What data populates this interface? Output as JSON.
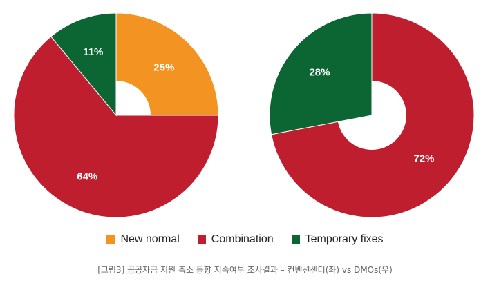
{
  "caption": "[그림3] 공공자금 지원 축소 동향 지속여부 조사결과 – 컨벤션센터(좌) vs DMOs(우)",
  "legend": [
    {
      "label": "New normal",
      "color": "#F39322"
    },
    {
      "label": "Combination",
      "color": "#BE1E2D"
    },
    {
      "label": "Temporary fixes",
      "color": "#0B6634"
    }
  ],
  "chart_data": [
    {
      "type": "pie",
      "donut": true,
      "title": "",
      "categories": [
        "New normal",
        "Combination",
        "Temporary fixes"
      ],
      "values": [
        25,
        64,
        11
      ],
      "labels": [
        "25%",
        "64%",
        "11%"
      ],
      "colors": [
        "#F39322",
        "#BE1E2D",
        "#0B6634"
      ],
      "legend_position": "bottom"
    },
    {
      "type": "pie",
      "donut": true,
      "title": "",
      "categories": [
        "Combination",
        "Temporary fixes"
      ],
      "values": [
        72,
        28
      ],
      "labels": [
        "72%",
        "28%"
      ],
      "colors": [
        "#BE1E2D",
        "#0B6634"
      ],
      "legend_position": "bottom"
    }
  ]
}
